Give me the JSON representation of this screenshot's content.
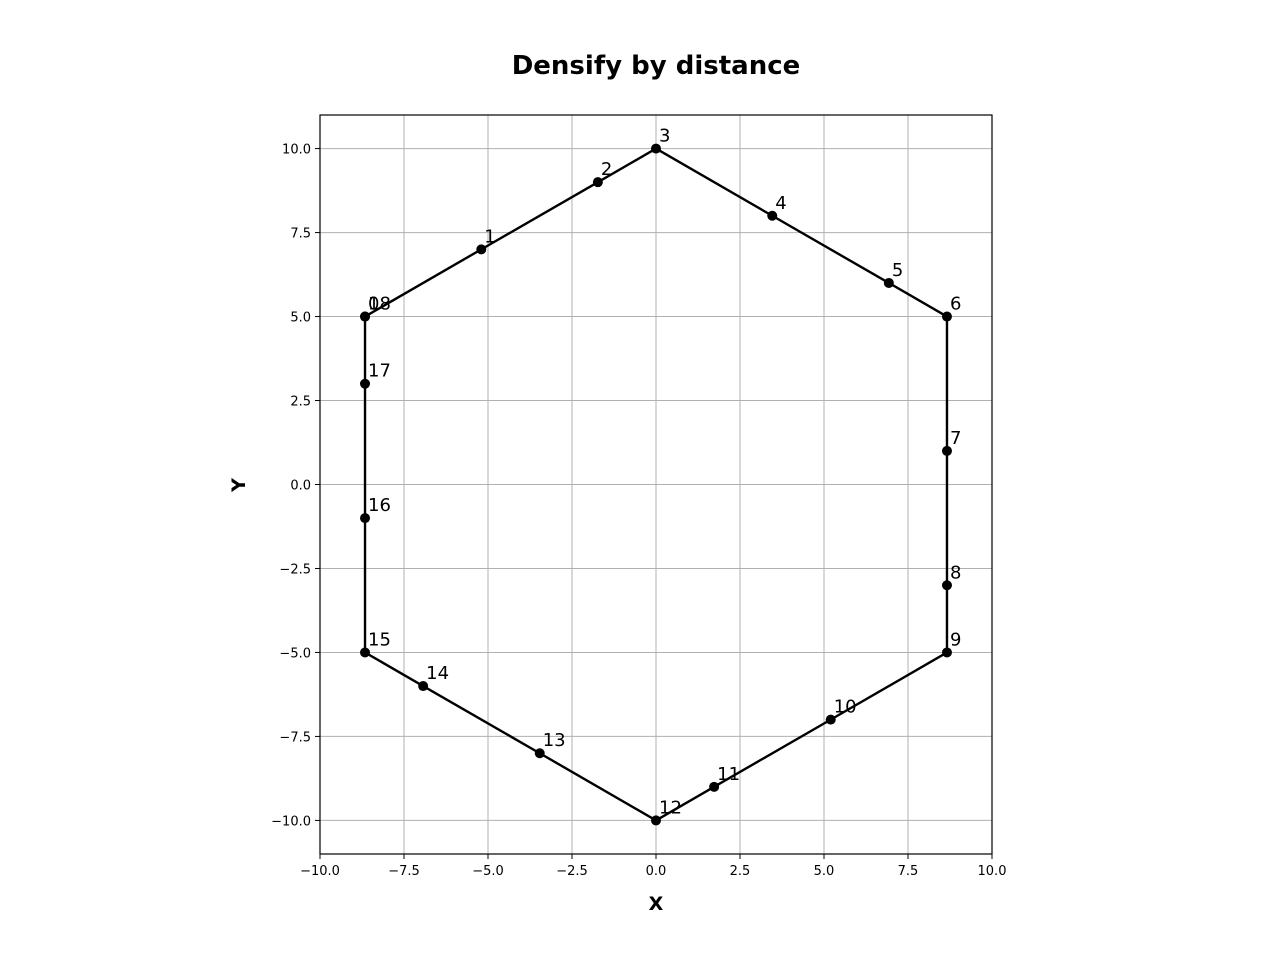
{
  "chart_data": {
    "type": "line",
    "title": "Densify by distance",
    "xlabel": "X",
    "ylabel": "Y",
    "xlim": [
      -10,
      10
    ],
    "ylim": [
      -11,
      11
    ],
    "grid": true,
    "aspect": "equal",
    "line_color": "#000000",
    "marker_color": "#000000",
    "xticks": [
      -10,
      -7.5,
      -5,
      -2.5,
      0,
      2.5,
      5,
      7.5,
      10
    ],
    "xtick_labels": [
      "−10.0",
      "−7.5",
      "−5.0",
      "−2.5",
      "0.0",
      "2.5",
      "5.0",
      "7.5",
      "10.0"
    ],
    "yticks": [
      10,
      7.5,
      5,
      2.5,
      0,
      -2.5,
      -5,
      -7.5,
      -10
    ],
    "ytick_labels": [
      "10.0",
      "7.5",
      "5.0",
      "2.5",
      "0.0",
      "−2.5",
      "−5.0",
      "−7.5",
      "−10.0"
    ],
    "points": [
      {
        "label": "0",
        "x": -8.66,
        "y": 5.0
      },
      {
        "label": "1",
        "x": -5.2,
        "y": 7.0
      },
      {
        "label": "2",
        "x": -1.73,
        "y": 9.0
      },
      {
        "label": "3",
        "x": 0.0,
        "y": 10.0
      },
      {
        "label": "4",
        "x": 3.46,
        "y": 8.0
      },
      {
        "label": "5",
        "x": 6.93,
        "y": 6.0
      },
      {
        "label": "6",
        "x": 8.66,
        "y": 5.0
      },
      {
        "label": "7",
        "x": 8.66,
        "y": 1.0
      },
      {
        "label": "8",
        "x": 8.66,
        "y": -3.0
      },
      {
        "label": "9",
        "x": 8.66,
        "y": -5.0
      },
      {
        "label": "10",
        "x": 5.2,
        "y": -7.0
      },
      {
        "label": "11",
        "x": 1.73,
        "y": -9.0
      },
      {
        "label": "12",
        "x": 0.0,
        "y": -10.0
      },
      {
        "label": "13",
        "x": -3.46,
        "y": -8.0
      },
      {
        "label": "14",
        "x": -6.93,
        "y": -6.0
      },
      {
        "label": "15",
        "x": -8.66,
        "y": -5.0
      },
      {
        "label": "16",
        "x": -8.66,
        "y": -1.0
      },
      {
        "label": "17",
        "x": -8.66,
        "y": 3.0
      },
      {
        "label": "18",
        "x": -8.66,
        "y": 5.0
      }
    ]
  }
}
